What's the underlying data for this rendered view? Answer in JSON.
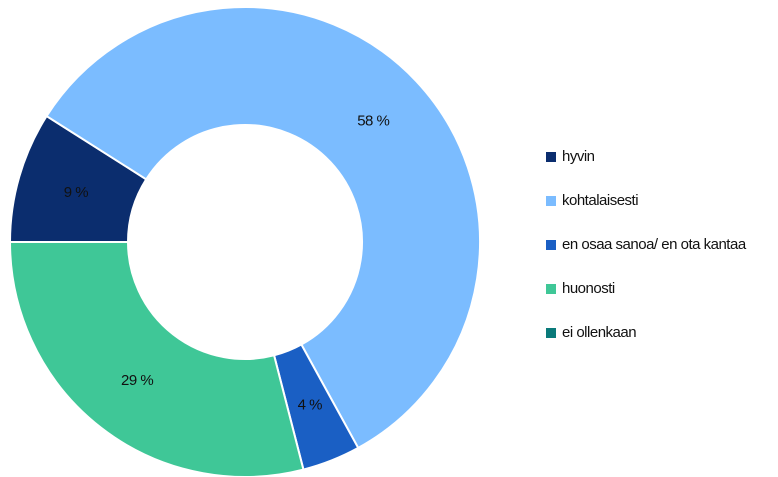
{
  "chart_data": {
    "type": "donut",
    "categories": [
      "hyvin",
      "kohtalaisesti",
      "en osaa sanoa/ en ota kantaa",
      "huonosti",
      "ei ollenkaan"
    ],
    "values": [
      9,
      58,
      4,
      29,
      0
    ],
    "value_labels": [
      "9 %",
      "58 %",
      "4 %",
      "29 %",
      null
    ],
    "colors": [
      "#0b2d6e",
      "#7bbcff",
      "#1a5fc4",
      "#3fc797",
      "#0a7a7a"
    ],
    "legend": "right"
  }
}
